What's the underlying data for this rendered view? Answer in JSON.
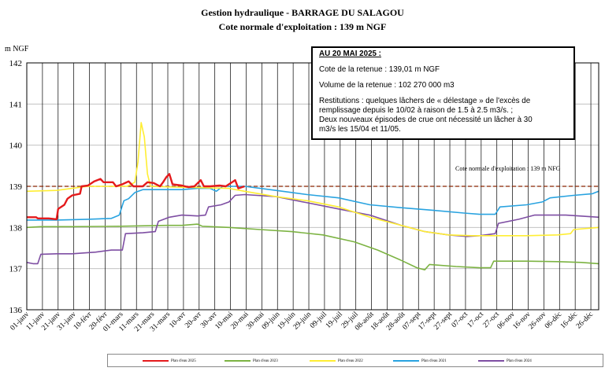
{
  "header": {
    "title": "Gestion hydraulique - BARRAGE DU SALAGOU",
    "subtitle_prefix": "Cote normale d'exploitation : ",
    "subtitle_value": "139 m NGF"
  },
  "info_box": {
    "date": "AU 20 MAI 2025 :",
    "cote": "Cote de la retenue : 139,01 m NGF",
    "volume": "Volume de la retenue : 102 270 000 m3",
    "restitutions_1": "Restitutions : quelques lâchers de « délestage » de l'excès de",
    "restitutions_2": "remplissage depuis le 10/02 à raison de 1.5 à 2.5 m3/s. ;",
    "restitutions_3": "Deux nouveaux épisodes de crue ont nécessité un lâcher à 30",
    "restitutions_4": "m3/s les 15/04 et 11/05."
  },
  "normal_level_label": "Cote normale d'exploitation : 139 m NFG",
  "colors": {
    "2025": "#e41a1c",
    "2023": "#7cb342",
    "2022": "#ffee33",
    "2021": "#29a3e0",
    "2024": "#7e4ea3",
    "normal_line": "#8b2500"
  },
  "chart_data": {
    "type": "line",
    "ylabel": "m NGF",
    "ylim": [
      136,
      142
    ],
    "yticks": [
      136,
      137,
      138,
      139,
      140,
      141,
      142
    ],
    "x_unit": "day of year",
    "xlim": [
      1,
      366
    ],
    "xtick_labels": [
      "01-janv",
      "11-janv",
      "21-janv",
      "31-janv",
      "10-févr",
      "20-févr",
      "01-mars",
      "11-mars",
      "21-mars",
      "31-mars",
      "10-avr",
      "20-avr",
      "30-avr",
      "10-mai",
      "20-mai",
      "30-mai",
      "09-juin",
      "19-juin",
      "29-juin",
      "09-juil",
      "19-juil",
      "29-juil",
      "08-août",
      "18-août",
      "28-août",
      "07-sept",
      "17-sept",
      "27-sept",
      "07-oct",
      "17-oct",
      "27-oct",
      "06-nov",
      "16-nov",
      "26-nov",
      "06-déc",
      "16-déc",
      "26-déc"
    ],
    "reference_line": {
      "y": 139
    },
    "series": [
      {
        "name": "Plan d'eau 2025",
        "key": "2025",
        "points": [
          [
            1,
            138.25
          ],
          [
            7,
            138.25
          ],
          [
            8,
            138.22
          ],
          [
            15,
            138.22
          ],
          [
            20,
            138.2
          ],
          [
            21,
            138.45
          ],
          [
            25,
            138.55
          ],
          [
            27,
            138.7
          ],
          [
            30,
            138.78
          ],
          [
            35,
            138.82
          ],
          [
            36,
            139
          ],
          [
            40,
            139.02
          ],
          [
            44,
            139.12
          ],
          [
            48,
            139.18
          ],
          [
            50,
            139.1
          ],
          [
            56,
            139.1
          ],
          [
            58,
            139.0
          ],
          [
            62,
            139.05
          ],
          [
            66,
            139.12
          ],
          [
            69,
            139.0
          ],
          [
            75,
            139.0
          ],
          [
            78,
            139.1
          ],
          [
            82,
            139.08
          ],
          [
            86,
            139.0
          ],
          [
            88,
            139.1
          ],
          [
            90,
            139.22
          ],
          [
            92,
            139.3
          ],
          [
            94,
            139.05
          ],
          [
            100,
            139.02
          ],
          [
            104,
            138.98
          ],
          [
            108,
            139.0
          ],
          [
            112,
            139.15
          ],
          [
            114,
            139.0
          ],
          [
            118,
            139.0
          ],
          [
            124,
            139.02
          ],
          [
            128,
            139.0
          ],
          [
            132,
            139.1
          ],
          [
            134,
            139.15
          ],
          [
            136,
            138.95
          ],
          [
            140,
            139.0
          ]
        ]
      },
      {
        "name": "Plan d'eau 2023",
        "key": "2023",
        "points": [
          [
            1,
            138.0
          ],
          [
            10,
            138.02
          ],
          [
            30,
            138.02
          ],
          [
            60,
            138.03
          ],
          [
            90,
            138.05
          ],
          [
            100,
            138.05
          ],
          [
            110,
            138.08
          ],
          [
            113,
            138.03
          ],
          [
            130,
            138.0
          ],
          [
            150,
            137.95
          ],
          [
            170,
            137.9
          ],
          [
            190,
            137.82
          ],
          [
            210,
            137.65
          ],
          [
            225,
            137.45
          ],
          [
            240,
            137.2
          ],
          [
            250,
            137.02
          ],
          [
            255,
            136.97
          ],
          [
            258,
            137.1
          ],
          [
            275,
            137.05
          ],
          [
            290,
            137.02
          ],
          [
            297,
            137.02
          ],
          [
            299,
            137.18
          ],
          [
            320,
            137.18
          ],
          [
            340,
            137.17
          ],
          [
            355,
            137.15
          ],
          [
            366,
            137.12
          ]
        ]
      },
      {
        "name": "Plan d'eau 2022",
        "key": "2022",
        "points": [
          [
            1,
            138.88
          ],
          [
            20,
            138.9
          ],
          [
            30,
            138.95
          ],
          [
            40,
            139.0
          ],
          [
            65,
            139.0
          ],
          [
            70,
            139.1
          ],
          [
            72,
            139.6
          ],
          [
            74,
            140.55
          ],
          [
            76,
            140.2
          ],
          [
            78,
            139.3
          ],
          [
            80,
            139.0
          ],
          [
            95,
            138.98
          ],
          [
            110,
            138.97
          ],
          [
            130,
            138.95
          ],
          [
            140,
            138.88
          ],
          [
            160,
            138.75
          ],
          [
            180,
            138.65
          ],
          [
            200,
            138.5
          ],
          [
            220,
            138.25
          ],
          [
            240,
            138.05
          ],
          [
            255,
            137.9
          ],
          [
            270,
            137.82
          ],
          [
            285,
            137.8
          ],
          [
            300,
            137.8
          ],
          [
            320,
            137.8
          ],
          [
            340,
            137.82
          ],
          [
            348,
            137.85
          ],
          [
            350,
            137.95
          ],
          [
            366,
            138.0
          ]
        ]
      },
      {
        "name": "Plan d'eau 2021",
        "key": "2021",
        "points": [
          [
            1,
            138.18
          ],
          [
            20,
            138.18
          ],
          [
            40,
            138.2
          ],
          [
            55,
            138.22
          ],
          [
            60,
            138.3
          ],
          [
            63,
            138.65
          ],
          [
            66,
            138.7
          ],
          [
            70,
            138.85
          ],
          [
            75,
            138.92
          ],
          [
            100,
            138.92
          ],
          [
            110,
            138.95
          ],
          [
            118,
            138.95
          ],
          [
            122,
            138.88
          ],
          [
            126,
            139.0
          ],
          [
            140,
            139.0
          ],
          [
            160,
            138.9
          ],
          [
            180,
            138.8
          ],
          [
            200,
            138.72
          ],
          [
            220,
            138.55
          ],
          [
            240,
            138.48
          ],
          [
            260,
            138.42
          ],
          [
            280,
            138.35
          ],
          [
            290,
            138.32
          ],
          [
            300,
            138.32
          ],
          [
            303,
            138.5
          ],
          [
            320,
            138.55
          ],
          [
            330,
            138.62
          ],
          [
            335,
            138.72
          ],
          [
            350,
            138.78
          ],
          [
            362,
            138.82
          ],
          [
            366,
            138.88
          ]
        ]
      },
      {
        "name": "Plan d'eau 2024",
        "key": "2024",
        "points": [
          [
            1,
            137.15
          ],
          [
            5,
            137.12
          ],
          [
            8,
            137.12
          ],
          [
            10,
            137.35
          ],
          [
            20,
            137.36
          ],
          [
            30,
            137.36
          ],
          [
            45,
            137.4
          ],
          [
            55,
            137.45
          ],
          [
            62,
            137.45
          ],
          [
            64,
            137.85
          ],
          [
            75,
            137.87
          ],
          [
            83,
            137.9
          ],
          [
            85,
            138.15
          ],
          [
            92,
            138.25
          ],
          [
            100,
            138.3
          ],
          [
            110,
            138.28
          ],
          [
            115,
            138.3
          ],
          [
            117,
            138.5
          ],
          [
            125,
            138.55
          ],
          [
            130,
            138.62
          ],
          [
            134,
            138.78
          ],
          [
            140,
            138.8
          ],
          [
            160,
            138.75
          ],
          [
            180,
            138.6
          ],
          [
            200,
            138.45
          ],
          [
            220,
            138.3
          ],
          [
            240,
            138.05
          ],
          [
            255,
            137.9
          ],
          [
            270,
            137.82
          ],
          [
            282,
            137.78
          ],
          [
            290,
            137.8
          ],
          [
            300,
            137.85
          ],
          [
            302,
            138.1
          ],
          [
            315,
            138.2
          ],
          [
            325,
            138.3
          ],
          [
            345,
            138.3
          ],
          [
            366,
            138.25
          ]
        ]
      }
    ]
  }
}
